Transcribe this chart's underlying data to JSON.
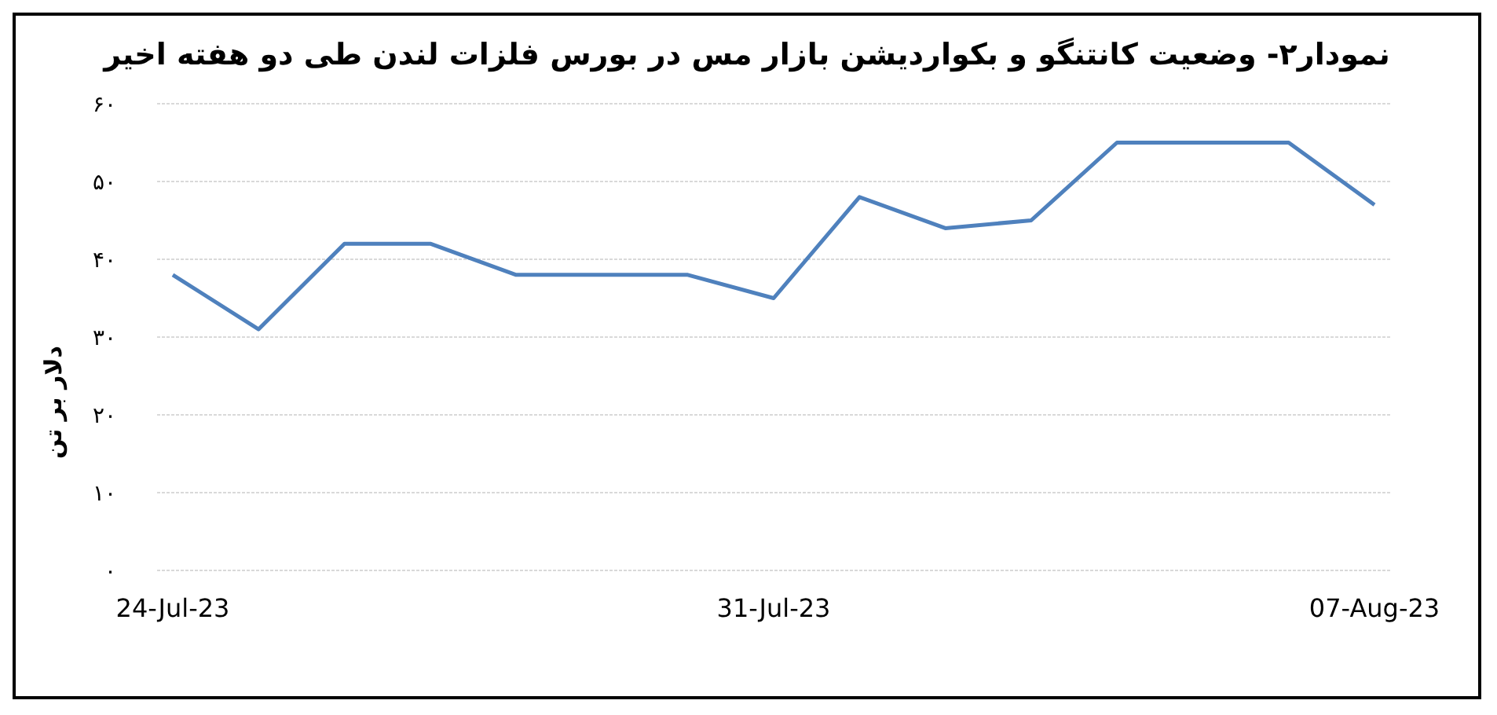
{
  "chart_data": {
    "type": "line",
    "title": "نمودار۲- وضعیت کانتنگو و بکواردیشن بازار مس در بورس فلزات لندن طی دو هفته اخیر",
    "ylabel": "دلار بر تن",
    "categories": [
      "24-Jul-23",
      null,
      null,
      null,
      null,
      null,
      null,
      "31-Jul-23",
      null,
      null,
      null,
      null,
      null,
      null,
      "07-Aug-23"
    ],
    "series": [
      {
        "color": "#4f81bd",
        "values": [
          38,
          31,
          42,
          42,
          38,
          38,
          38,
          35,
          48,
          44,
          45,
          55,
          55,
          55,
          47
        ]
      }
    ],
    "ylim": [
      0,
      60
    ],
    "yticks": [
      {
        "value": 0,
        "label": "۰"
      },
      {
        "value": 10,
        "label": "۱۰"
      },
      {
        "value": 20,
        "label": "۲۰"
      },
      {
        "value": 30,
        "label": "۳۰"
      },
      {
        "value": 40,
        "label": "۴۰"
      },
      {
        "value": 50,
        "label": "۵۰"
      },
      {
        "value": 60,
        "label": "۶۰"
      }
    ],
    "grid": "y",
    "marker": "none",
    "line_style": "solid"
  }
}
